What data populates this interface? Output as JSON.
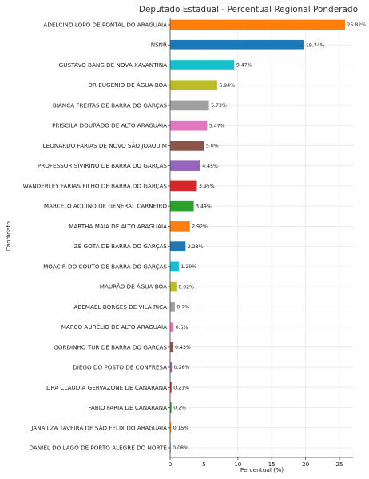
{
  "chart_data": {
    "type": "bar",
    "orientation": "horizontal",
    "title": "Deputado Estadual - Percentual Regional Ponderado",
    "xlabel": "Percentual (%)",
    "ylabel": "Candidato",
    "xlim": [
      0,
      27
    ],
    "xticks": [
      0,
      5,
      10,
      15,
      20,
      25
    ],
    "grid": true,
    "categories": [
      "ADELCINO LOPO DE PONTAL DO ARAGUAIA",
      "NSNR",
      "GUSTAVO BANG DE NOVA XAVANTINA",
      "DR EUGENIO DE ÁGUA BOA",
      "BIANCA FREITAS DE BARRA DO GARÇAS",
      "PRISCILA DOURADO DE ALTO ARAGUAIA",
      "LEONARDO FARIAS DE NOVO SÃO JOAQUIM",
      "PROFESSOR SIVIRINO DE BARRA DO GARÇAS",
      "WANDERLEY FARIAS FILHO DE BARRA DO GARÇAS",
      "MARCELO AQUINO DE GENERAL CARNEIRO",
      "MARTHA MAIA DE ALTO ARAGUAIA",
      "ZÉ GOTA DE BARRA DO GARÇAS",
      "MOACIR DO COUTO DE BARRA DO GARÇAS",
      "MAURÃO DE ÁGUA BOA",
      "ABEMAEL BORGES DE VILA RICA",
      "MARCO AURÉLIO DE ALTO ARAGUAIA",
      "GORDINHO TUR DE BARRA DO GARÇAS",
      "DIEGO DO POSTO DE CONFRESA",
      "DRA CLAUDIA GERVAZONE DE CANARANA",
      "FABIO FARIA DE CANARANA",
      "JANAILZA TAVEIRA DE SÃO FELIX DO ARAGUAIA",
      "DANIEL DO LAGO DE PORTO ALEGRE DO NORTE"
    ],
    "values": [
      25.82,
      19.74,
      9.47,
      6.94,
      5.73,
      5.47,
      5.0,
      4.45,
      3.95,
      3.49,
      2.92,
      2.28,
      1.29,
      0.92,
      0.7,
      0.5,
      0.43,
      0.26,
      0.21,
      0.2,
      0.15,
      0.08
    ],
    "value_labels": [
      "25.82%",
      "19.74%",
      "9.47%",
      "6.94%",
      "5.73%",
      "5.47%",
      "5.0%",
      "4.45%",
      "3.95%",
      "3.49%",
      "2.92%",
      "2.28%",
      "1.29%",
      "0.92%",
      "0.7%",
      "0.5%",
      "0.43%",
      "0.26%",
      "0.21%",
      "0.2%",
      "0.15%",
      "0.08%"
    ],
    "colors": [
      "#ff7f0e",
      "#1f77b4",
      "#17becf",
      "#bcbd22",
      "#a0a0a0",
      "#e377c2",
      "#8c564b",
      "#9467bd",
      "#d62728",
      "#2ca02c",
      "#ff7f0e",
      "#1f77b4",
      "#17becf",
      "#bcbd22",
      "#a0a0a0",
      "#e377c2",
      "#8c564b",
      "#9467bd",
      "#d62728",
      "#2ca02c",
      "#ff7f0e",
      "#1f77b4"
    ]
  }
}
